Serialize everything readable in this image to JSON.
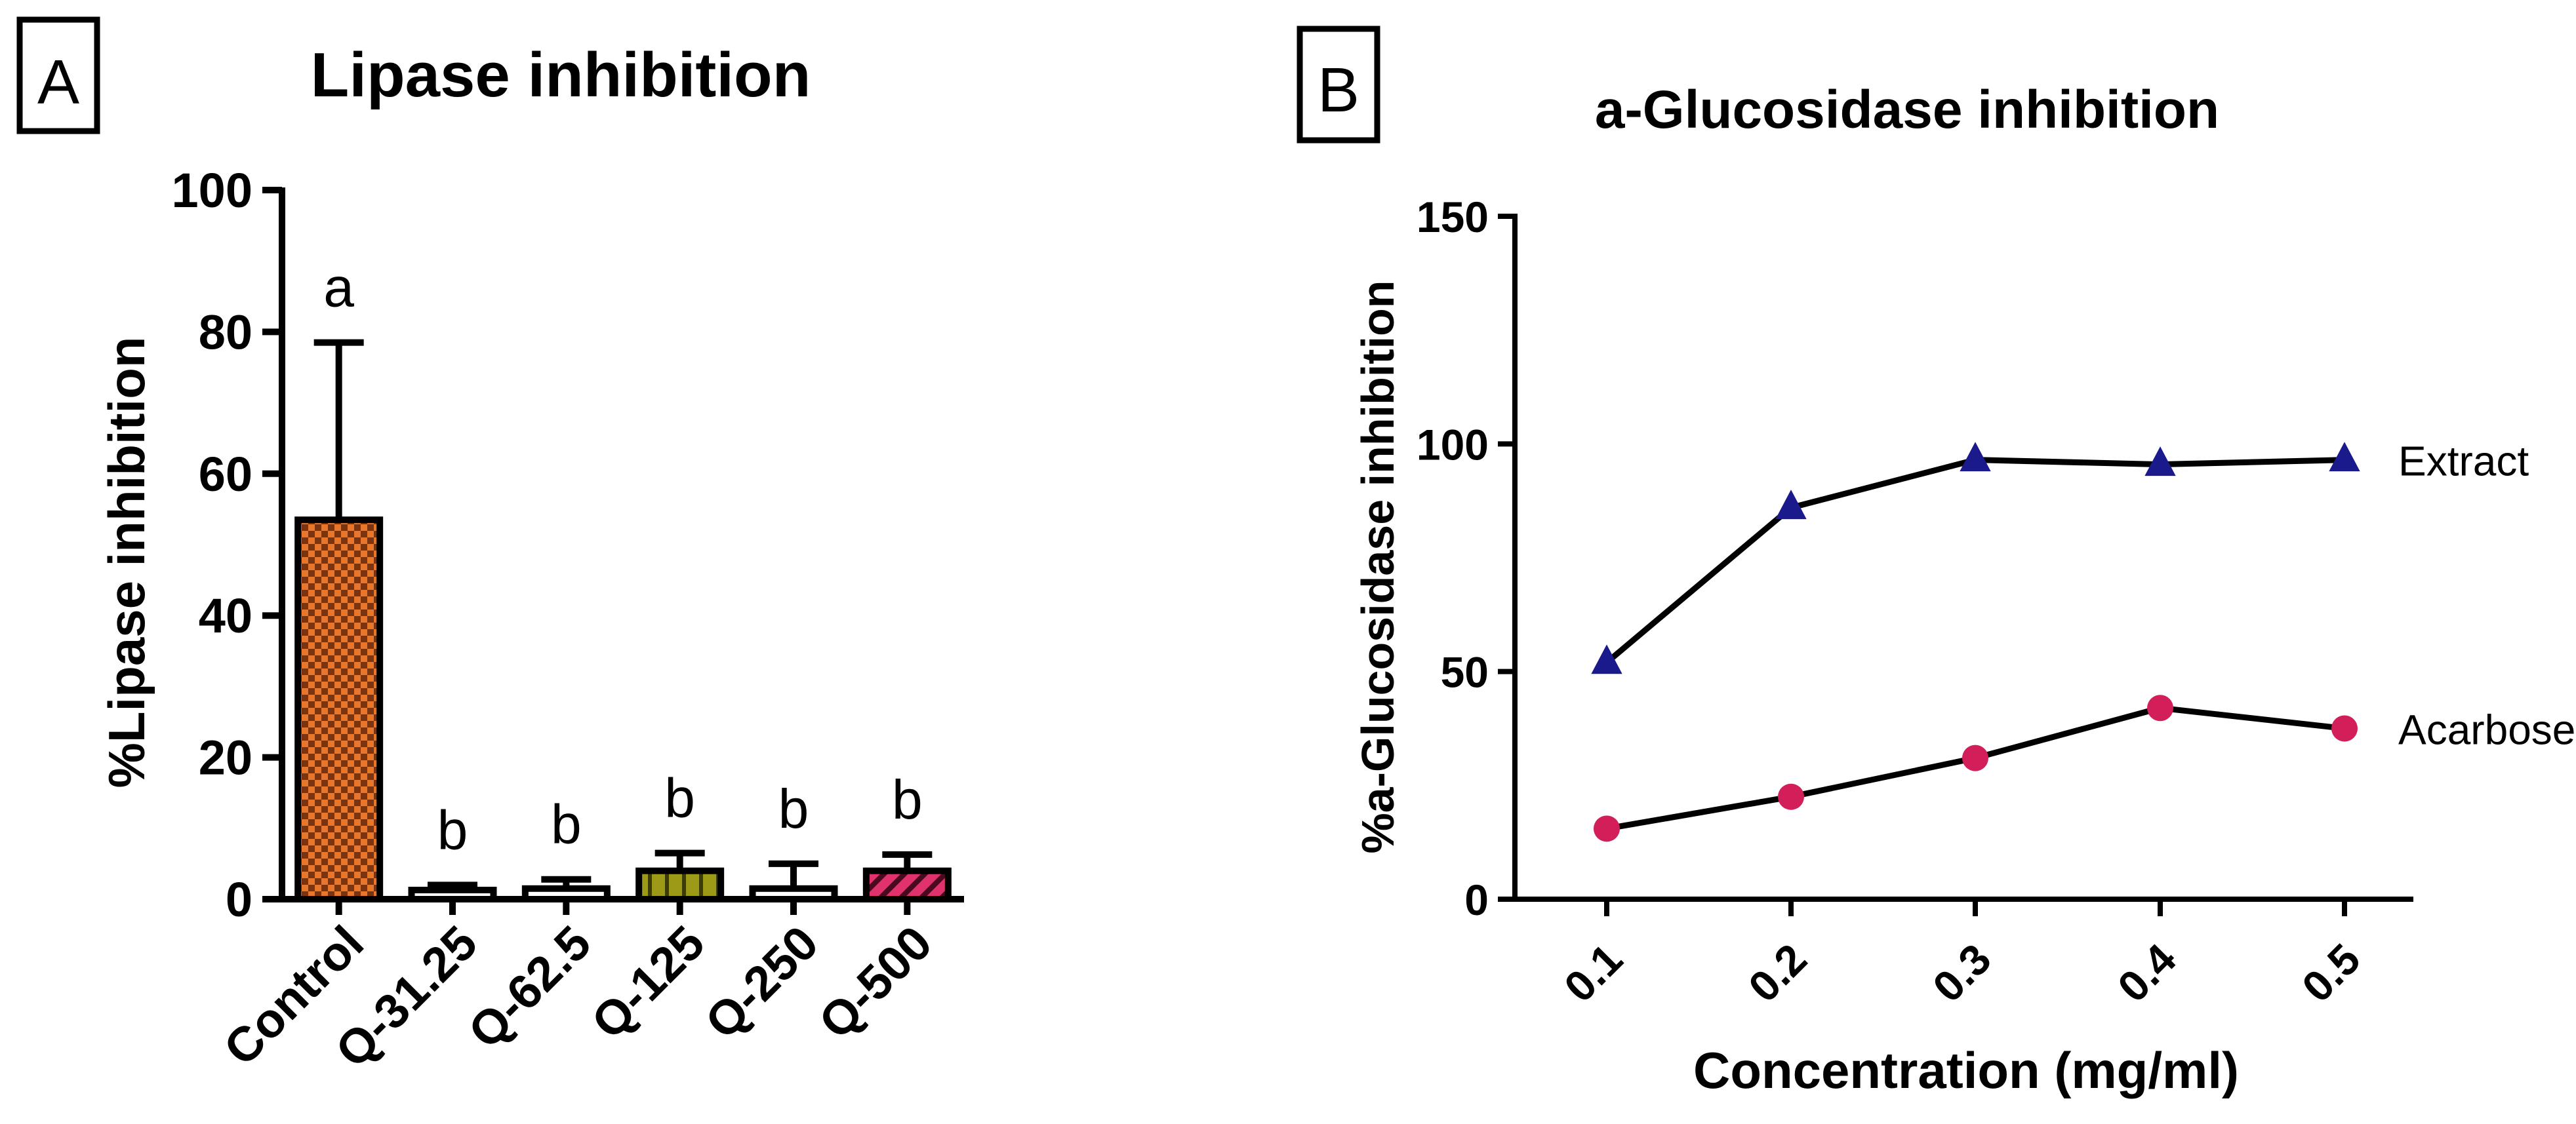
{
  "colors": {
    "axis": "#000000",
    "control": "#E8762B",
    "q31": "#ffffff",
    "q62": "#ffffff",
    "q125": "#9C9A17",
    "q250": "#ffffff",
    "q500": "#E0336E",
    "extract_marker": "#1A1A8C",
    "acarbose_marker": "#D21F5A",
    "line": "#000000"
  },
  "chart_data": [
    {
      "panel_label": "A",
      "type": "bar",
      "title": "Lipase inhibition",
      "xlabel": "",
      "ylabel": "%Lipase inhibition",
      "ylim": [
        0,
        100
      ],
      "yticks": [
        "0",
        "20",
        "40",
        "60",
        "80",
        "100"
      ],
      "categories": [
        "Control",
        "Q-31.25",
        "Q-62.5",
        "Q-125",
        "Q-250",
        "Q-500"
      ],
      "values": [
        53.5,
        1.0,
        1.5,
        4.0,
        1.5,
        4.0
      ],
      "error_upper": [
        78.5,
        2.0,
        2.8,
        6.5,
        5.0,
        6.3
      ],
      "significance": [
        "a",
        "b",
        "b",
        "b",
        "b",
        "b"
      ],
      "patterns": [
        "checker",
        "none",
        "none",
        "vstripes",
        "none",
        "diag"
      ]
    },
    {
      "panel_label": "B",
      "type": "line",
      "title": "a-Glucosidase inhibition",
      "xlabel": "Concentration (mg/ml)",
      "ylabel": "%a-Glucosidase inhibition",
      "ylim": [
        0,
        150
      ],
      "yticks": [
        "0",
        "50",
        "100",
        "150"
      ],
      "x": [
        "0.1",
        "0.2",
        "0.3",
        "0.4",
        "0.5"
      ],
      "series": [
        {
          "name": "Extract",
          "marker": "triangle",
          "values": [
            52,
            86,
            96.5,
            95.5,
            96.5
          ]
        },
        {
          "name": "Acarbose",
          "marker": "circle",
          "values": [
            15.5,
            22.5,
            31,
            42,
            37.5
          ]
        }
      ]
    }
  ]
}
